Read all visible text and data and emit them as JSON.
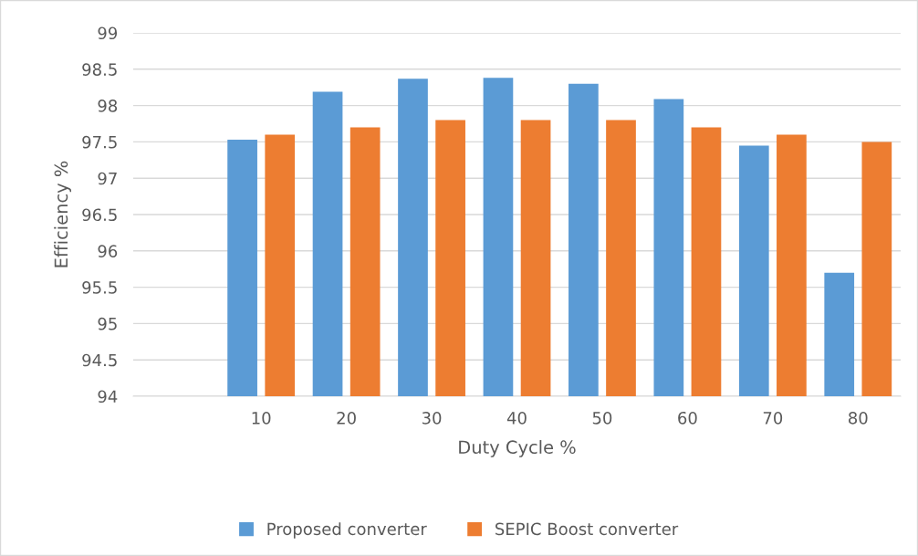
{
  "chart_data": {
    "type": "bar",
    "xlabel": "Duty Cycle %",
    "ylabel": "Efficiency %",
    "categories": [
      null,
      "10",
      "20",
      "30",
      "40",
      "50",
      "60",
      "70",
      "80"
    ],
    "series": [
      {
        "name": "Proposed converter",
        "color": "#5b9bd5",
        "values": [
          null,
          97.53,
          98.19,
          98.37,
          98.38,
          98.3,
          98.09,
          97.45,
          95.7
        ]
      },
      {
        "name": "SEPIC Boost converter",
        "color": "#ed7d31",
        "values": [
          null,
          97.6,
          97.7,
          97.8,
          97.8,
          97.8,
          97.7,
          97.6,
          97.5
        ]
      }
    ],
    "ylim": [
      94,
      99
    ],
    "yticks": [
      94,
      94.5,
      95,
      95.5,
      96,
      96.5,
      97,
      97.5,
      98,
      98.5,
      99
    ],
    "grid": "y",
    "legend": "bottom"
  }
}
